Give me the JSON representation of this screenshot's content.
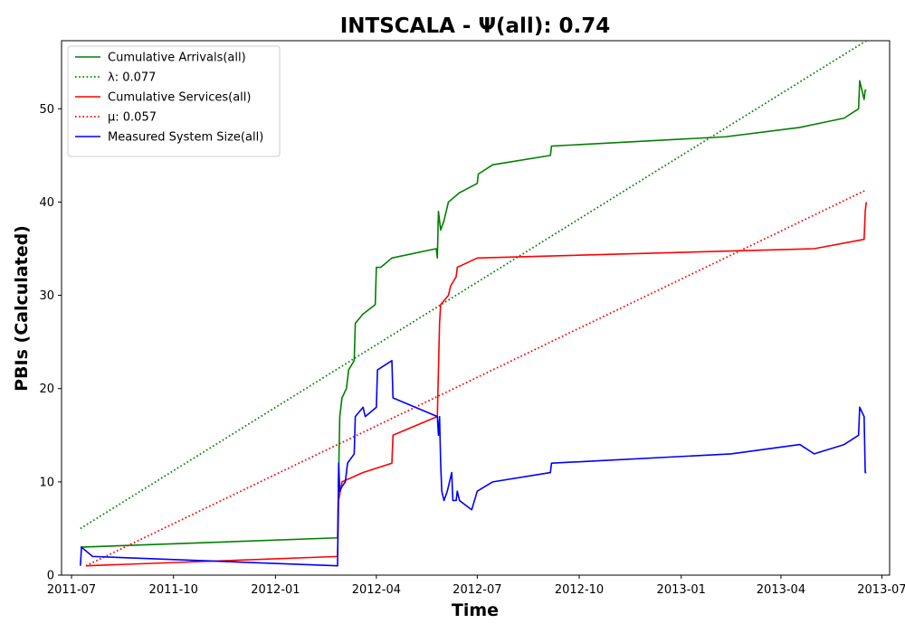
{
  "chart_data": {
    "type": "line",
    "title": "INTSCALA -  Ψ(all): 0.74",
    "xlabel": "Time",
    "ylabel": "PBIs (Calculated)",
    "x_type": "date",
    "xlim": [
      "2011-06-22",
      "2013-07-08"
    ],
    "ylim": [
      0,
      57.3
    ],
    "x_ticks": [
      "2011-07-01",
      "2011-10-01",
      "2012-01-01",
      "2012-04-01",
      "2012-07-01",
      "2012-10-01",
      "2013-01-01",
      "2013-04-01",
      "2013-07-01"
    ],
    "x_tick_labels": [
      "2011-07",
      "2011-10",
      "2012-01",
      "2012-04",
      "2012-07",
      "2012-10",
      "2013-01",
      "2013-04",
      "2013-07"
    ],
    "y_ticks": [
      0,
      10,
      20,
      30,
      40,
      50
    ],
    "grid": false,
    "legend_position": "top-left",
    "series": [
      {
        "name": "Cumulative Arrivals(all)",
        "legend_label": "Cumulative Arrivals(all)",
        "color": "#008000",
        "style": "solid",
        "points": [
          [
            "2011-07-09",
            3
          ],
          [
            "2012-02-26",
            4
          ],
          [
            "2012-02-27",
            11
          ],
          [
            "2012-02-28",
            17
          ],
          [
            "2012-03-01",
            19
          ],
          [
            "2012-03-05",
            20
          ],
          [
            "2012-03-07",
            22
          ],
          [
            "2012-03-12",
            23
          ],
          [
            "2012-03-13",
            27
          ],
          [
            "2012-03-20",
            28
          ],
          [
            "2012-03-31",
            29
          ],
          [
            "2012-04-01",
            33
          ],
          [
            "2012-04-05",
            33
          ],
          [
            "2012-04-15",
            34
          ],
          [
            "2012-05-25",
            35
          ],
          [
            "2012-05-26",
            34
          ],
          [
            "2012-05-27",
            39
          ],
          [
            "2012-05-29",
            37
          ],
          [
            "2012-06-01",
            38
          ],
          [
            "2012-06-05",
            40
          ],
          [
            "2012-06-15",
            41
          ],
          [
            "2012-07-01",
            42
          ],
          [
            "2012-07-02",
            43
          ],
          [
            "2012-07-15",
            44
          ],
          [
            "2012-09-05",
            45
          ],
          [
            "2012-09-06",
            46
          ],
          [
            "2013-02-10",
            47
          ],
          [
            "2013-04-18",
            48
          ],
          [
            "2013-05-28",
            49
          ],
          [
            "2013-06-10",
            50
          ],
          [
            "2013-06-11",
            53
          ],
          [
            "2013-06-15",
            51
          ],
          [
            "2013-06-16",
            52
          ],
          [
            "2013-06-17",
            52
          ]
        ]
      },
      {
        "name": "λ",
        "legend_label": "λ: 0.077",
        "color": "#008000",
        "style": "dotted",
        "points": [
          [
            "2011-07-09",
            5
          ],
          [
            "2013-06-17",
            57.3
          ]
        ]
      },
      {
        "name": "Cumulative Services(all)",
        "legend_label": "Cumulative Services(all)",
        "color": "#ff0000",
        "style": "solid",
        "points": [
          [
            "2011-07-14",
            1
          ],
          [
            "2012-02-26",
            2
          ],
          [
            "2012-02-27",
            8
          ],
          [
            "2012-03-01",
            10
          ],
          [
            "2012-03-20",
            11
          ],
          [
            "2012-04-15",
            12
          ],
          [
            "2012-04-16",
            15
          ],
          [
            "2012-05-26",
            17
          ],
          [
            "2012-05-27",
            22
          ],
          [
            "2012-05-28",
            27
          ],
          [
            "2012-05-29",
            29
          ],
          [
            "2012-06-05",
            30
          ],
          [
            "2012-06-07",
            31
          ],
          [
            "2012-06-12",
            32
          ],
          [
            "2012-06-13",
            33
          ],
          [
            "2012-07-01",
            34
          ],
          [
            "2013-05-01",
            35
          ],
          [
            "2013-06-15",
            36
          ],
          [
            "2013-06-16",
            39
          ],
          [
            "2013-06-17",
            40
          ]
        ]
      },
      {
        "name": "μ",
        "legend_label": "μ: 0.057",
        "color": "#ff0000",
        "style": "dotted",
        "points": [
          [
            "2011-07-14",
            1
          ],
          [
            "2013-06-17",
            41.3
          ]
        ]
      },
      {
        "name": "Measured System Size(all)",
        "legend_label": "Measured System Size(all)",
        "color": "#0000ff",
        "style": "solid",
        "points": [
          [
            "2011-07-09",
            1
          ],
          [
            "2011-07-10",
            3
          ],
          [
            "2011-07-20",
            2
          ],
          [
            "2012-02-26",
            1
          ],
          [
            "2012-02-27",
            12
          ],
          [
            "2012-02-28",
            9
          ],
          [
            "2012-03-01",
            9.5
          ],
          [
            "2012-03-04",
            10
          ],
          [
            "2012-03-06",
            12
          ],
          [
            "2012-03-12",
            13
          ],
          [
            "2012-03-13",
            17
          ],
          [
            "2012-03-20",
            18
          ],
          [
            "2012-03-22",
            17
          ],
          [
            "2012-04-01",
            18
          ],
          [
            "2012-04-02",
            22
          ],
          [
            "2012-04-15",
            23
          ],
          [
            "2012-04-16",
            19
          ],
          [
            "2012-05-26",
            17
          ],
          [
            "2012-05-27",
            15
          ],
          [
            "2012-05-28",
            17
          ],
          [
            "2012-05-29",
            12
          ],
          [
            "2012-05-30",
            9
          ],
          [
            "2012-06-01",
            8
          ],
          [
            "2012-06-04",
            9
          ],
          [
            "2012-06-06",
            10
          ],
          [
            "2012-06-08",
            11
          ],
          [
            "2012-06-09",
            8
          ],
          [
            "2012-06-12",
            8
          ],
          [
            "2012-06-13",
            9
          ],
          [
            "2012-06-15",
            8
          ],
          [
            "2012-06-26",
            7
          ],
          [
            "2012-07-01",
            9
          ],
          [
            "2012-07-15",
            10
          ],
          [
            "2012-09-05",
            11
          ],
          [
            "2012-09-06",
            12
          ],
          [
            "2013-02-15",
            13
          ],
          [
            "2013-04-18",
            14
          ],
          [
            "2013-05-01",
            13
          ],
          [
            "2013-05-28",
            14
          ],
          [
            "2013-06-10",
            15
          ],
          [
            "2013-06-11",
            18
          ],
          [
            "2013-06-15",
            17
          ],
          [
            "2013-06-16",
            11
          ],
          [
            "2013-06-17",
            11
          ]
        ]
      }
    ]
  }
}
